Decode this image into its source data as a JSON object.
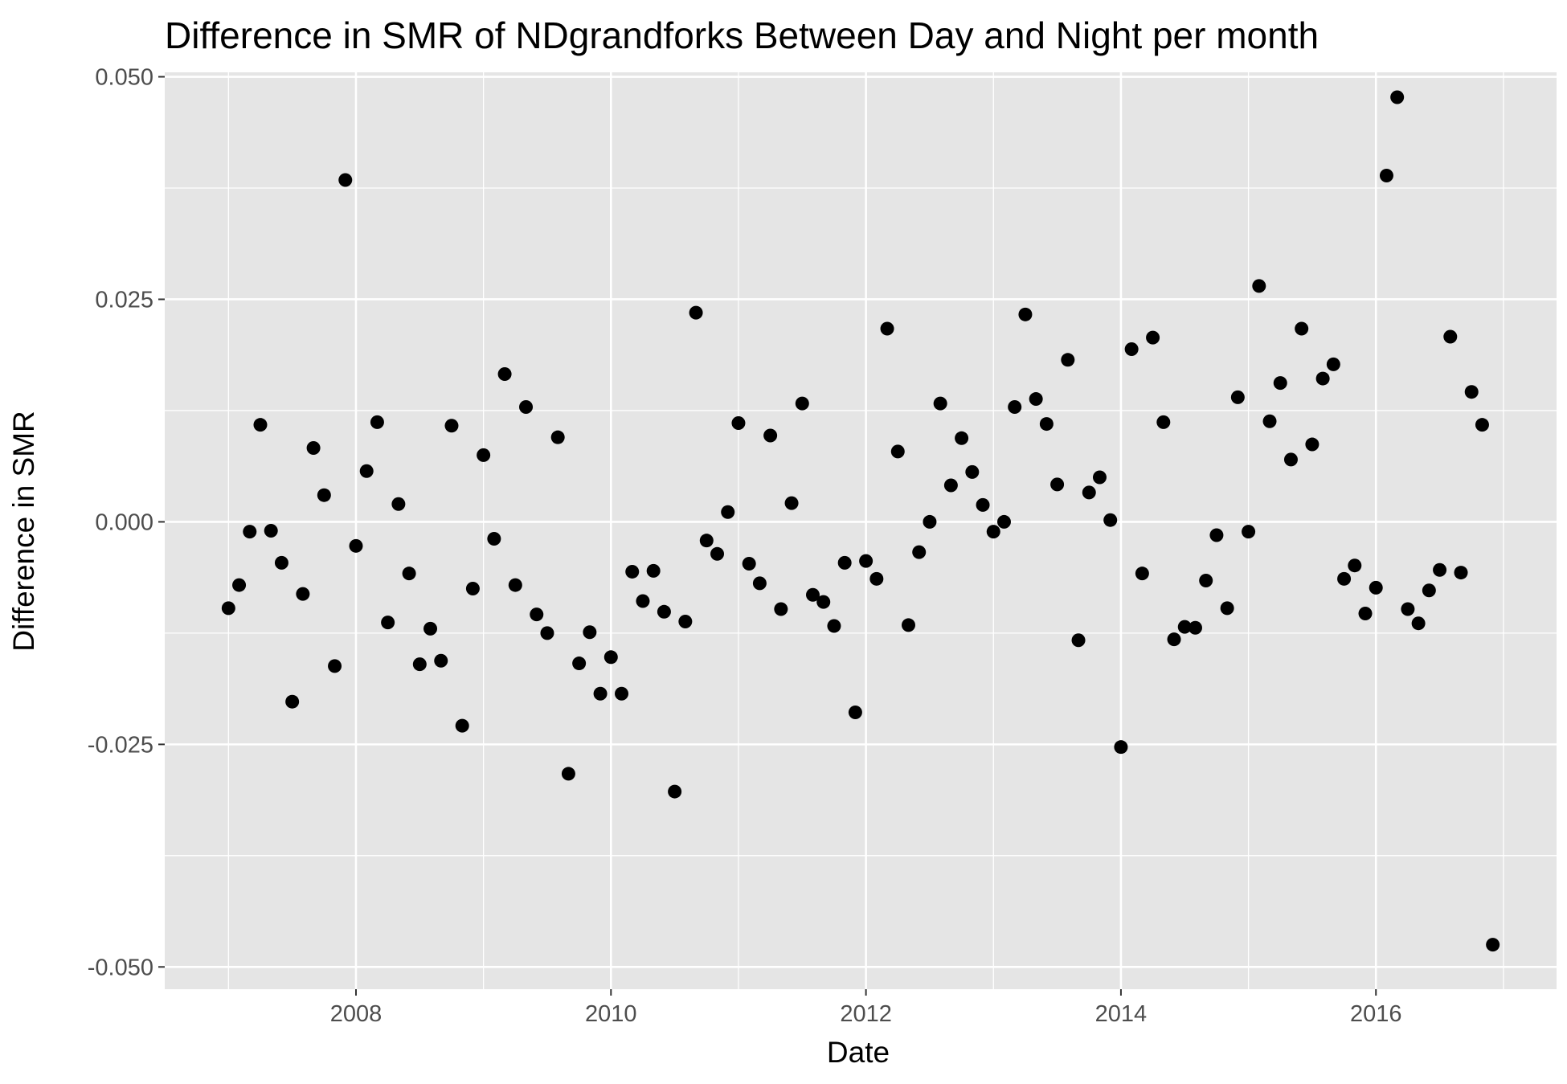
{
  "chart_data": {
    "type": "scatter",
    "title": "Difference in SMR of NDgrandforks Between Day and Night per month",
    "xlabel": "Date",
    "ylabel": "Difference in SMR",
    "x_ticks": [
      "2008",
      "2010",
      "2012",
      "2014",
      "2016"
    ],
    "y_ticks": [
      "-0.050",
      "-0.025",
      "0.000",
      "0.025",
      "0.050"
    ],
    "xlim": [
      "2006-07-01",
      "2017-06-01"
    ],
    "ylim": [
      -0.0525,
      0.0505
    ],
    "grid": true,
    "legend": "none",
    "colors": {
      "panel": "#e5e5e5",
      "grid": "#ffffff",
      "point": "#000000"
    },
    "points": [
      {
        "x": "2007-01",
        "y": -0.0097
      },
      {
        "x": "2007-02",
        "y": -0.0071
      },
      {
        "x": "2007-03",
        "y": -0.0011
      },
      {
        "x": "2007-04",
        "y": 0.0109
      },
      {
        "x": "2007-05",
        "y": -0.001
      },
      {
        "x": "2007-06",
        "y": -0.0046
      },
      {
        "x": "2007-07",
        "y": -0.0202
      },
      {
        "x": "2007-08",
        "y": -0.0081
      },
      {
        "x": "2007-09",
        "y": 0.0083
      },
      {
        "x": "2007-10",
        "y": 0.003
      },
      {
        "x": "2007-11",
        "y": -0.0162
      },
      {
        "x": "2007-12",
        "y": 0.0384
      },
      {
        "x": "2008-01",
        "y": -0.0027
      },
      {
        "x": "2008-02",
        "y": 0.0057
      },
      {
        "x": "2008-03",
        "y": 0.0112
      },
      {
        "x": "2008-04",
        "y": -0.0113
      },
      {
        "x": "2008-05",
        "y": 0.002
      },
      {
        "x": "2008-06",
        "y": -0.0058
      },
      {
        "x": "2008-07",
        "y": -0.016
      },
      {
        "x": "2008-08",
        "y": -0.012
      },
      {
        "x": "2008-09",
        "y": -0.0156
      },
      {
        "x": "2008-10",
        "y": 0.0108
      },
      {
        "x": "2008-11",
        "y": -0.0229
      },
      {
        "x": "2008-12",
        "y": -0.0075
      },
      {
        "x": "2009-01",
        "y": 0.0075
      },
      {
        "x": "2009-02",
        "y": -0.0019
      },
      {
        "x": "2009-03",
        "y": 0.0166
      },
      {
        "x": "2009-04",
        "y": -0.0071
      },
      {
        "x": "2009-05",
        "y": 0.0129
      },
      {
        "x": "2009-06",
        "y": -0.0104
      },
      {
        "x": "2009-07",
        "y": -0.0125
      },
      {
        "x": "2009-08",
        "y": 0.0095
      },
      {
        "x": "2009-09",
        "y": -0.0283
      },
      {
        "x": "2009-10",
        "y": -0.0159
      },
      {
        "x": "2009-11",
        "y": -0.0124
      },
      {
        "x": "2009-12",
        "y": -0.0193
      },
      {
        "x": "2010-01",
        "y": -0.0152
      },
      {
        "x": "2010-02",
        "y": -0.0193
      },
      {
        "x": "2010-03",
        "y": -0.0056
      },
      {
        "x": "2010-04",
        "y": -0.0089
      },
      {
        "x": "2010-05",
        "y": -0.0055
      },
      {
        "x": "2010-06",
        "y": -0.0101
      },
      {
        "x": "2010-07",
        "y": -0.0303
      },
      {
        "x": "2010-08",
        "y": -0.0112
      },
      {
        "x": "2010-09",
        "y": 0.0235
      },
      {
        "x": "2010-10",
        "y": -0.0021
      },
      {
        "x": "2010-11",
        "y": -0.0036
      },
      {
        "x": "2010-12",
        "y": 0.0011
      },
      {
        "x": "2011-01",
        "y": 0.0111
      },
      {
        "x": "2011-02",
        "y": -0.0047
      },
      {
        "x": "2011-03",
        "y": -0.0069
      },
      {
        "x": "2011-04",
        "y": 0.0097
      },
      {
        "x": "2011-05",
        "y": -0.0098
      },
      {
        "x": "2011-06",
        "y": 0.0021
      },
      {
        "x": "2011-07",
        "y": 0.0133
      },
      {
        "x": "2011-08",
        "y": -0.0082
      },
      {
        "x": "2011-09",
        "y": -0.009
      },
      {
        "x": "2011-10",
        "y": -0.0117
      },
      {
        "x": "2011-11",
        "y": -0.0046
      },
      {
        "x": "2011-12",
        "y": -0.0214
      },
      {
        "x": "2012-01",
        "y": -0.0044
      },
      {
        "x": "2012-02",
        "y": -0.0064
      },
      {
        "x": "2012-03",
        "y": 0.0217
      },
      {
        "x": "2012-04",
        "y": 0.0079
      },
      {
        "x": "2012-05",
        "y": -0.0116
      },
      {
        "x": "2012-06",
        "y": -0.0034
      },
      {
        "x": "2012-07",
        "y": 0.0
      },
      {
        "x": "2012-08",
        "y": 0.0133
      },
      {
        "x": "2012-09",
        "y": 0.0041
      },
      {
        "x": "2012-10",
        "y": 0.0094
      },
      {
        "x": "2012-11",
        "y": 0.0056
      },
      {
        "x": "2012-12",
        "y": 0.0019
      },
      {
        "x": "2013-01",
        "y": -0.0011
      },
      {
        "x": "2013-02",
        "y": 0.0
      },
      {
        "x": "2013-03",
        "y": 0.0129
      },
      {
        "x": "2013-04",
        "y": 0.0233
      },
      {
        "x": "2013-05",
        "y": 0.0138
      },
      {
        "x": "2013-06",
        "y": 0.011
      },
      {
        "x": "2013-07",
        "y": 0.0042
      },
      {
        "x": "2013-08",
        "y": 0.0182
      },
      {
        "x": "2013-09",
        "y": -0.0133
      },
      {
        "x": "2013-10",
        "y": 0.0033
      },
      {
        "x": "2013-11",
        "y": 0.005
      },
      {
        "x": "2013-12",
        "y": 0.0002
      },
      {
        "x": "2014-01",
        "y": -0.0253
      },
      {
        "x": "2014-02",
        "y": 0.0194
      },
      {
        "x": "2014-03",
        "y": -0.0058
      },
      {
        "x": "2014-04",
        "y": 0.0207
      },
      {
        "x": "2014-05",
        "y": 0.0112
      },
      {
        "x": "2014-06",
        "y": -0.0132
      },
      {
        "x": "2014-07",
        "y": -0.0118
      },
      {
        "x": "2014-08",
        "y": -0.0119
      },
      {
        "x": "2014-09",
        "y": -0.0066
      },
      {
        "x": "2014-10",
        "y": -0.0015
      },
      {
        "x": "2014-11",
        "y": -0.0097
      },
      {
        "x": "2014-12",
        "y": 0.014
      },
      {
        "x": "2015-01",
        "y": -0.0011
      },
      {
        "x": "2015-02",
        "y": 0.0265
      },
      {
        "x": "2015-03",
        "y": 0.0113
      },
      {
        "x": "2015-04",
        "y": 0.0156
      },
      {
        "x": "2015-05",
        "y": 0.007
      },
      {
        "x": "2015-06",
        "y": 0.0217
      },
      {
        "x": "2015-07",
        "y": 0.0087
      },
      {
        "x": "2015-08",
        "y": 0.0161
      },
      {
        "x": "2015-09",
        "y": 0.0177
      },
      {
        "x": "2015-10",
        "y": -0.0064
      },
      {
        "x": "2015-11",
        "y": -0.0049
      },
      {
        "x": "2015-12",
        "y": -0.0103
      },
      {
        "x": "2016-01",
        "y": -0.0074
      },
      {
        "x": "2016-02",
        "y": 0.0389
      },
      {
        "x": "2016-03",
        "y": 0.0477
      },
      {
        "x": "2016-04",
        "y": -0.0098
      },
      {
        "x": "2016-05",
        "y": -0.0114
      },
      {
        "x": "2016-06",
        "y": -0.0077
      },
      {
        "x": "2016-07",
        "y": -0.0054
      },
      {
        "x": "2016-08",
        "y": 0.0208
      },
      {
        "x": "2016-09",
        "y": -0.0057
      },
      {
        "x": "2016-10",
        "y": 0.0146
      },
      {
        "x": "2016-11",
        "y": 0.0109
      },
      {
        "x": "2016-12",
        "y": -0.0475
      }
    ]
  }
}
